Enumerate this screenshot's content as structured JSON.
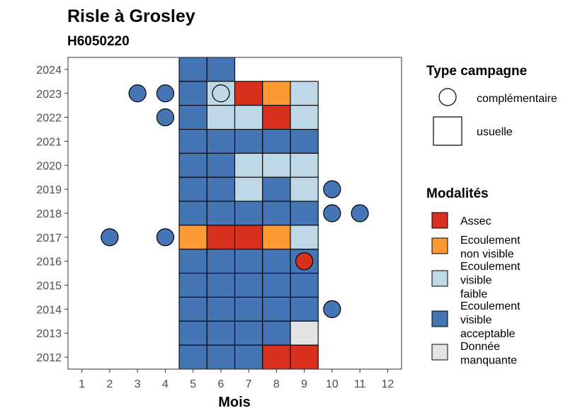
{
  "chart_data": {
    "type": "heatmap",
    "title": "Risle à Grosley",
    "subtitle": "H6050220",
    "xlabel": "Mois",
    "ylabel": "",
    "x_ticks": [
      "1",
      "2",
      "3",
      "4",
      "5",
      "6",
      "7",
      "8",
      "9",
      "10",
      "11",
      "12"
    ],
    "y_ticks": [
      "2012",
      "2013",
      "2014",
      "2015",
      "2016",
      "2017",
      "2018",
      "2019",
      "2020",
      "2021",
      "2022",
      "2023",
      "2024"
    ],
    "xlim": [
      0.5,
      12.5
    ],
    "ylim": [
      2011.5,
      2024.5
    ],
    "colors": {
      "assec": "#d7301f",
      "non_visible": "#fd9a33",
      "faible": "#bfd8e8",
      "acceptable": "#4575b4",
      "manquante": "#e3e3e3",
      "outline": "#000000"
    },
    "legend_campagne": {
      "title": "Type campagne",
      "items": [
        {
          "label": "complémentaire",
          "shape": "circle"
        },
        {
          "label": "usuelle",
          "shape": "square"
        }
      ]
    },
    "legend_modalites": {
      "title": "Modalités",
      "items": [
        {
          "key": "assec",
          "lines": [
            "Assec"
          ]
        },
        {
          "key": "non_visible",
          "lines": [
            "Ecoulement",
            "non visible"
          ]
        },
        {
          "key": "faible",
          "lines": [
            "Ecoulement",
            "visible",
            "faible"
          ]
        },
        {
          "key": "acceptable",
          "lines": [
            "Ecoulement",
            "visible",
            "acceptable"
          ]
        },
        {
          "key": "manquante",
          "lines": [
            "Donnée",
            "manquante"
          ]
        }
      ]
    },
    "usuelle": [
      {
        "year": 2024,
        "month": 5,
        "m": "acceptable"
      },
      {
        "year": 2024,
        "month": 6,
        "m": "acceptable"
      },
      {
        "year": 2023,
        "month": 5,
        "m": "acceptable"
      },
      {
        "year": 2023,
        "month": 6,
        "m": "faible"
      },
      {
        "year": 2023,
        "month": 7,
        "m": "assec"
      },
      {
        "year": 2023,
        "month": 8,
        "m": "non_visible"
      },
      {
        "year": 2023,
        "month": 9,
        "m": "faible"
      },
      {
        "year": 2022,
        "month": 5,
        "m": "acceptable"
      },
      {
        "year": 2022,
        "month": 6,
        "m": "faible"
      },
      {
        "year": 2022,
        "month": 7,
        "m": "faible"
      },
      {
        "year": 2022,
        "month": 8,
        "m": "assec"
      },
      {
        "year": 2022,
        "month": 9,
        "m": "faible"
      },
      {
        "year": 2021,
        "month": 5,
        "m": "acceptable"
      },
      {
        "year": 2021,
        "month": 6,
        "m": "acceptable"
      },
      {
        "year": 2021,
        "month": 7,
        "m": "acceptable"
      },
      {
        "year": 2021,
        "month": 8,
        "m": "acceptable"
      },
      {
        "year": 2021,
        "month": 9,
        "m": "acceptable"
      },
      {
        "year": 2020,
        "month": 5,
        "m": "acceptable"
      },
      {
        "year": 2020,
        "month": 6,
        "m": "acceptable"
      },
      {
        "year": 2020,
        "month": 7,
        "m": "faible"
      },
      {
        "year": 2020,
        "month": 8,
        "m": "faible"
      },
      {
        "year": 2020,
        "month": 9,
        "m": "faible"
      },
      {
        "year": 2019,
        "month": 5,
        "m": "acceptable"
      },
      {
        "year": 2019,
        "month": 6,
        "m": "acceptable"
      },
      {
        "year": 2019,
        "month": 7,
        "m": "faible"
      },
      {
        "year": 2019,
        "month": 8,
        "m": "acceptable"
      },
      {
        "year": 2019,
        "month": 9,
        "m": "faible"
      },
      {
        "year": 2018,
        "month": 5,
        "m": "acceptable"
      },
      {
        "year": 2018,
        "month": 6,
        "m": "acceptable"
      },
      {
        "year": 2018,
        "month": 7,
        "m": "acceptable"
      },
      {
        "year": 2018,
        "month": 8,
        "m": "acceptable"
      },
      {
        "year": 2018,
        "month": 9,
        "m": "acceptable"
      },
      {
        "year": 2017,
        "month": 5,
        "m": "non_visible"
      },
      {
        "year": 2017,
        "month": 6,
        "m": "assec"
      },
      {
        "year": 2017,
        "month": 7,
        "m": "assec"
      },
      {
        "year": 2017,
        "month": 8,
        "m": "non_visible"
      },
      {
        "year": 2017,
        "month": 9,
        "m": "faible"
      },
      {
        "year": 2016,
        "month": 5,
        "m": "acceptable"
      },
      {
        "year": 2016,
        "month": 6,
        "m": "acceptable"
      },
      {
        "year": 2016,
        "month": 7,
        "m": "acceptable"
      },
      {
        "year": 2016,
        "month": 8,
        "m": "acceptable"
      },
      {
        "year": 2016,
        "month": 9,
        "m": "acceptable"
      },
      {
        "year": 2015,
        "month": 5,
        "m": "acceptable"
      },
      {
        "year": 2015,
        "month": 6,
        "m": "acceptable"
      },
      {
        "year": 2015,
        "month": 7,
        "m": "acceptable"
      },
      {
        "year": 2015,
        "month": 8,
        "m": "acceptable"
      },
      {
        "year": 2015,
        "month": 9,
        "m": "acceptable"
      },
      {
        "year": 2014,
        "month": 5,
        "m": "acceptable"
      },
      {
        "year": 2014,
        "month": 6,
        "m": "acceptable"
      },
      {
        "year": 2014,
        "month": 7,
        "m": "acceptable"
      },
      {
        "year": 2014,
        "month": 8,
        "m": "acceptable"
      },
      {
        "year": 2014,
        "month": 9,
        "m": "acceptable"
      },
      {
        "year": 2013,
        "month": 5,
        "m": "acceptable"
      },
      {
        "year": 2013,
        "month": 6,
        "m": "acceptable"
      },
      {
        "year": 2013,
        "month": 7,
        "m": "acceptable"
      },
      {
        "year": 2013,
        "month": 8,
        "m": "acceptable"
      },
      {
        "year": 2013,
        "month": 9,
        "m": "manquante"
      },
      {
        "year": 2012,
        "month": 5,
        "m": "acceptable"
      },
      {
        "year": 2012,
        "month": 6,
        "m": "acceptable"
      },
      {
        "year": 2012,
        "month": 7,
        "m": "acceptable"
      },
      {
        "year": 2012,
        "month": 8,
        "m": "assec"
      },
      {
        "year": 2012,
        "month": 9,
        "m": "assec"
      }
    ],
    "complementaire": [
      {
        "year": 2023,
        "month": 3,
        "m": "acceptable"
      },
      {
        "year": 2023,
        "month": 4,
        "m": "acceptable"
      },
      {
        "year": 2023,
        "month": 6,
        "m": "faible"
      },
      {
        "year": 2022,
        "month": 4,
        "m": "acceptable"
      },
      {
        "year": 2019,
        "month": 10,
        "m": "acceptable"
      },
      {
        "year": 2018,
        "month": 10,
        "m": "acceptable"
      },
      {
        "year": 2018,
        "month": 11,
        "m": "acceptable"
      },
      {
        "year": 2017,
        "month": 2,
        "m": "acceptable"
      },
      {
        "year": 2017,
        "month": 4,
        "m": "acceptable"
      },
      {
        "year": 2016,
        "month": 9,
        "m": "assec"
      },
      {
        "year": 2014,
        "month": 10,
        "m": "acceptable"
      }
    ]
  }
}
